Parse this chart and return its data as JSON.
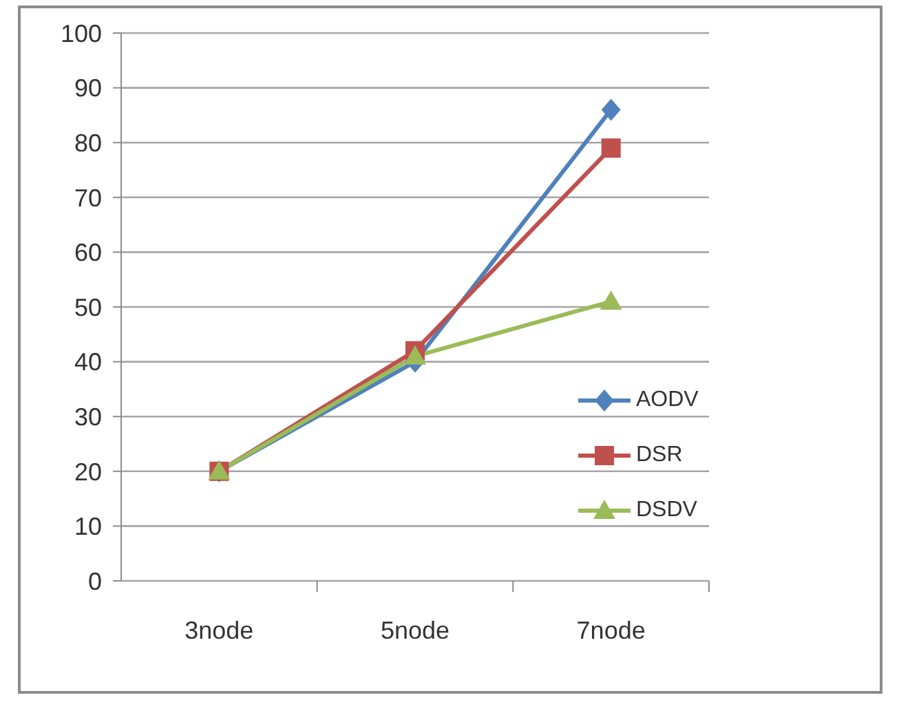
{
  "chart_data": {
    "type": "line",
    "categories": [
      "3node",
      "5node",
      "7node"
    ],
    "series": [
      {
        "name": "AODV",
        "color": "#4f81bd",
        "values": [
          20,
          40,
          86
        ],
        "marker": "diamond"
      },
      {
        "name": "DSR",
        "color": "#c0504d",
        "values": [
          20,
          42,
          79
        ],
        "marker": "square"
      },
      {
        "name": "DSDV",
        "color": "#9bbb59",
        "values": [
          20,
          41,
          51
        ],
        "marker": "triangle"
      }
    ],
    "ylim": [
      0,
      100
    ],
    "yticks": [
      0,
      10,
      20,
      30,
      40,
      50,
      60,
      70,
      80,
      90,
      100
    ],
    "grid": "y",
    "legend": "right",
    "line_style": "solid"
  }
}
